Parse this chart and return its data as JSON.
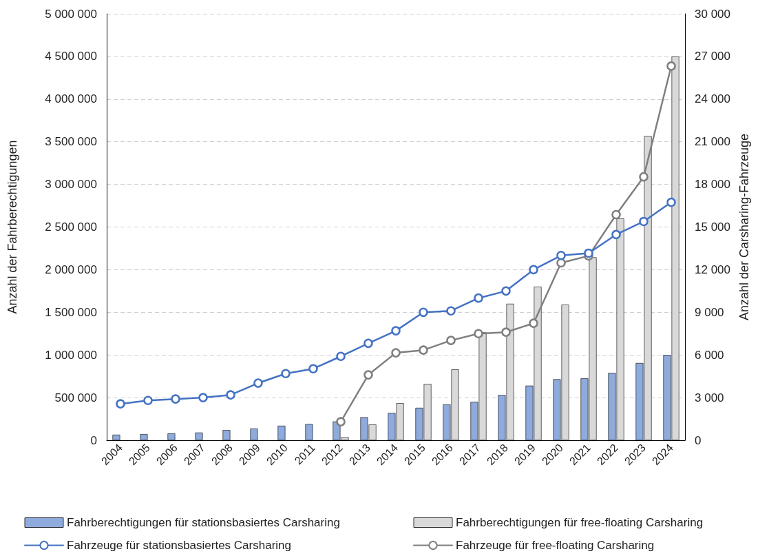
{
  "chart_data": {
    "type": "bar",
    "ylabel": "Anzahl der Fahrberechtigungen",
    "y2label": "Anzahl der Carsharing-Fahrzeuge",
    "categories": [
      "2004",
      "2005",
      "2006",
      "2007",
      "2008",
      "2009",
      "2010",
      "2011",
      "2012",
      "2013",
      "2014",
      "2015",
      "2016",
      "2017",
      "2018",
      "2019",
      "2020",
      "2021",
      "2022",
      "2023",
      "2024"
    ],
    "series": [
      {
        "name": "Fahrberechtigungen für stationsbasiertes Carsharing",
        "color": "#8faadc",
        "values": [
          65000,
          72000,
          80000,
          90000,
          120000,
          137000,
          170000,
          190000,
          220000,
          270000,
          320000,
          380000,
          420000,
          450000,
          530000,
          640000,
          715000,
          725000,
          790000,
          905000,
          1000000
        ]
      },
      {
        "name": "Fahrberechtigungen für free-floating Carsharing",
        "color": "#d9d9d9",
        "values": [
          null,
          null,
          null,
          null,
          null,
          null,
          null,
          null,
          35000,
          185000,
          435000,
          660000,
          830000,
          1265000,
          1600000,
          1800000,
          1590000,
          2145000,
          2600000,
          3565000,
          4500000
        ]
      },
      {
        "name": "Fahrzeuge für stationsbasiertes Carsharing",
        "type": "line",
        "axis": "y2",
        "color": "#4472c4",
        "values": [
          2560,
          2800,
          2900,
          3000,
          3190,
          4020,
          4690,
          5030,
          5900,
          6820,
          7700,
          9000,
          9100,
          10000,
          10500,
          12000,
          13000,
          13160,
          14470,
          15390,
          16740
        ]
      },
      {
        "name": "Fahrzeuge für free-floating Carsharing",
        "type": "line",
        "axis": "y2",
        "color": "#7f7f7f",
        "values": [
          null,
          null,
          null,
          null,
          null,
          null,
          null,
          null,
          1300,
          4600,
          6150,
          6340,
          7020,
          7500,
          7600,
          8230,
          12480,
          12970,
          15870,
          18530,
          26320
        ]
      }
    ],
    "ylim": [
      0,
      5000000
    ],
    "yticks": [
      {
        "value": 0,
        "label": "0"
      },
      {
        "value": 500000,
        "label": "500 000"
      },
      {
        "value": 1000000,
        "label": "1 000 000"
      },
      {
        "value": 1500000,
        "label": "1 500 000"
      },
      {
        "value": 2000000,
        "label": "2 000 000"
      },
      {
        "value": 2500000,
        "label": "2 500 000"
      },
      {
        "value": 3000000,
        "label": "3 000 000"
      },
      {
        "value": 3500000,
        "label": "3 500 000"
      },
      {
        "value": 4000000,
        "label": "4 000 000"
      },
      {
        "value": 4500000,
        "label": "4 500 000"
      },
      {
        "value": 5000000,
        "label": "5 000 000"
      }
    ],
    "y2lim": [
      0,
      30000
    ],
    "y2ticks": [
      {
        "value": 0,
        "label": "0"
      },
      {
        "value": 3000,
        "label": "3 000"
      },
      {
        "value": 6000,
        "label": "6 000"
      },
      {
        "value": 9000,
        "label": "9 000"
      },
      {
        "value": 12000,
        "label": "12 000"
      },
      {
        "value": 15000,
        "label": "15 000"
      },
      {
        "value": 18000,
        "label": "18 000"
      },
      {
        "value": 21000,
        "label": "21 000"
      },
      {
        "value": 24000,
        "label": "24 000"
      },
      {
        "value": 27000,
        "label": "27 000"
      },
      {
        "value": 30000,
        "label": "30 000"
      }
    ],
    "grid": "y",
    "legend": "bottom",
    "marker": "circle",
    "line_style": "solid"
  }
}
